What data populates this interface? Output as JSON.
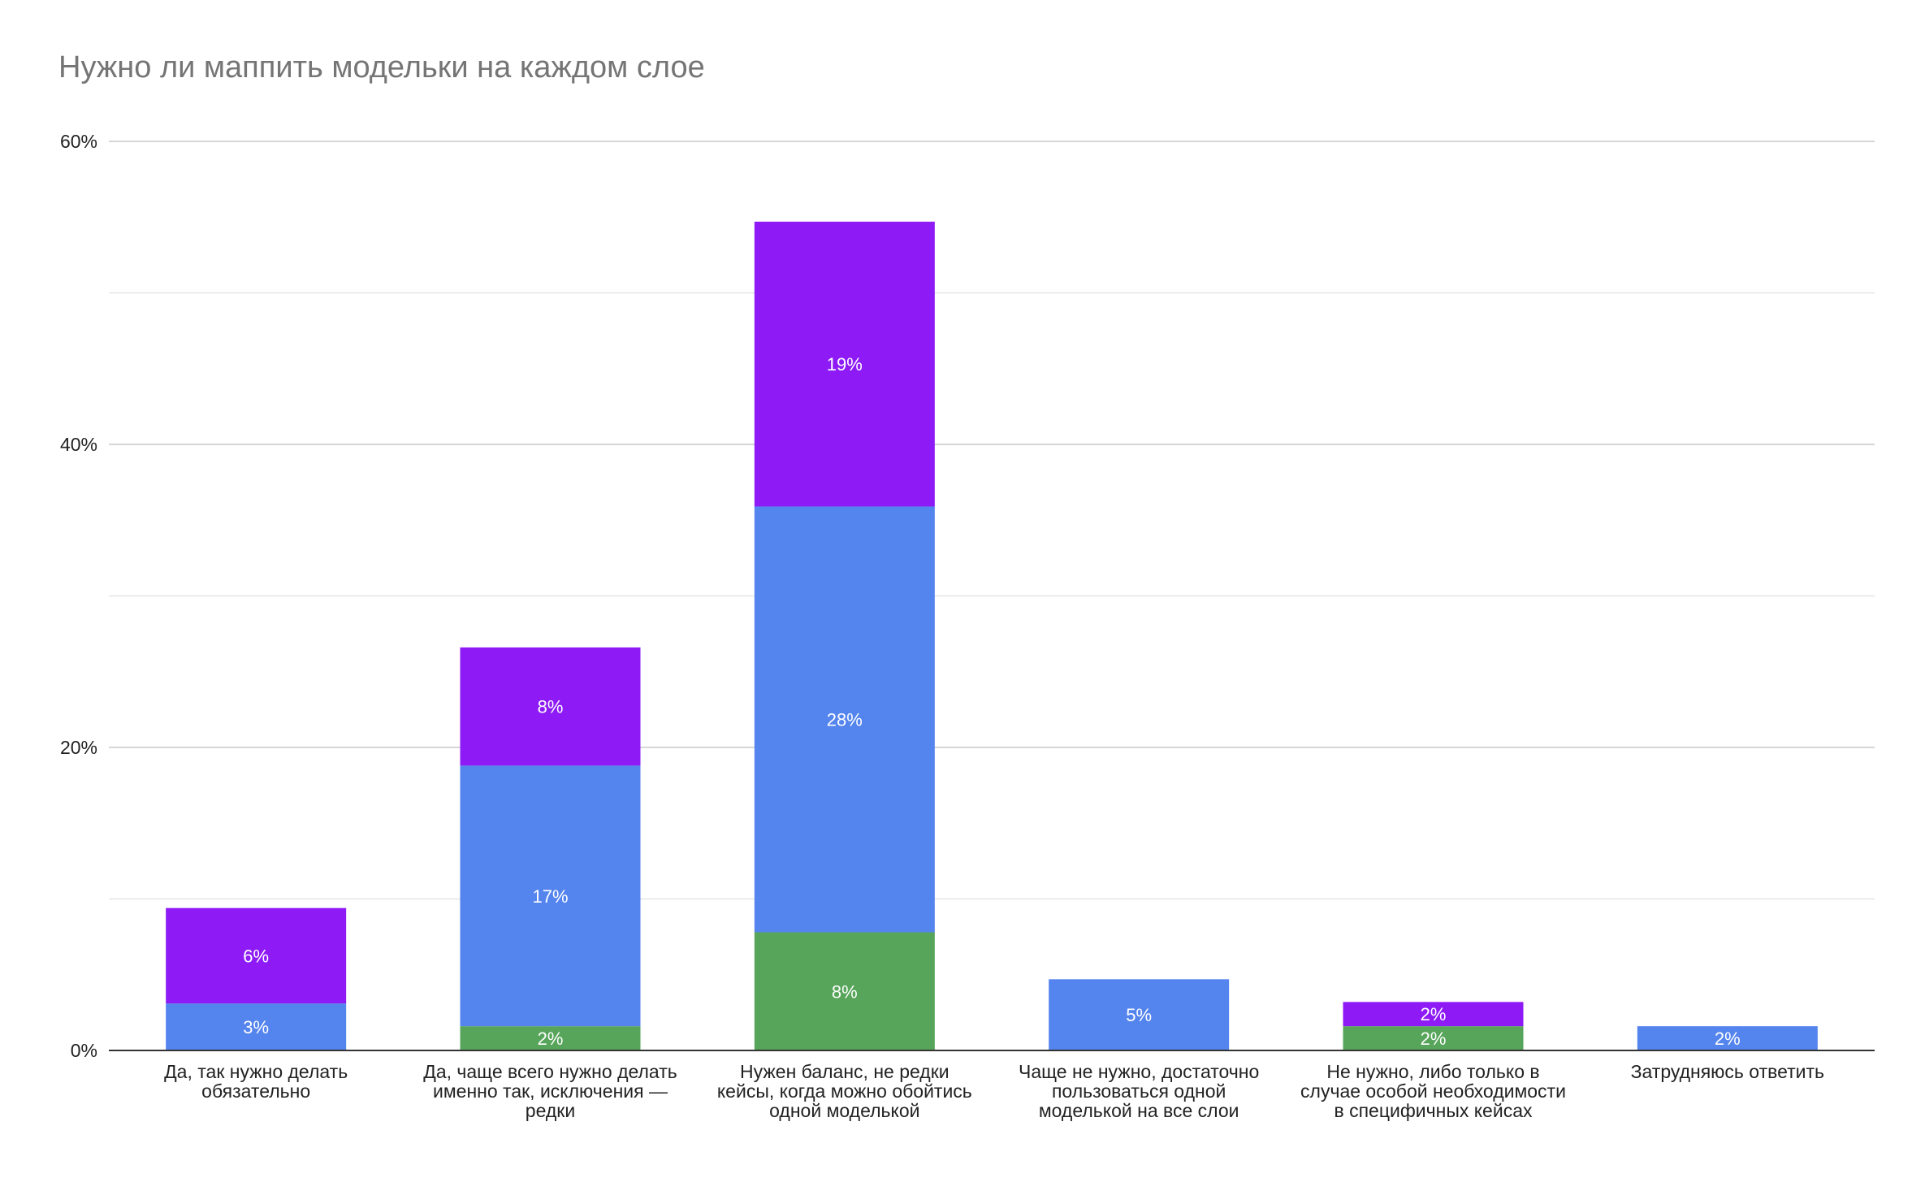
{
  "chart_data": {
    "type": "bar",
    "stacked": true,
    "title": "Нужно ли маппить модельки на каждом слое",
    "categories": [
      "Да, так нужно делать обязательно",
      "Да, чаще всего нужно делать именно так, исключения — редки",
      "Нужен баланс, не редки кейсы, когда можно обойтись одной моделькой",
      "Чаще не нужно, достаточно пользоваться одной моделькой на все слои",
      "Не нужно, либо только в случае особой необходимости в специфичных кейсах",
      "Затрудняюсь ответить"
    ],
    "series": [
      {
        "color": "#57a55a",
        "values": [
          0,
          1.6,
          7.8,
          0,
          1.6,
          0
        ],
        "labels": [
          "",
          "2%",
          "8%",
          "",
          "2%",
          ""
        ]
      },
      {
        "color": "#5484ed",
        "values": [
          3.1,
          17.2,
          28.1,
          4.7,
          0,
          1.6
        ],
        "labels": [
          "3%",
          "17%",
          "28%",
          "5%",
          "",
          "2%"
        ]
      },
      {
        "color": "#8e1bf5",
        "values": [
          6.3,
          7.8,
          18.8,
          0,
          1.6,
          0
        ],
        "labels": [
          "6%",
          "8%",
          "19%",
          "",
          "2%",
          ""
        ]
      }
    ],
    "ylim": [
      0,
      60
    ],
    "yticks": [
      {
        "value": 0,
        "label": "0%"
      },
      {
        "value": 20,
        "label": "20%"
      },
      {
        "value": 40,
        "label": "40%"
      },
      {
        "value": 60,
        "label": "60%"
      }
    ],
    "minor_gridlines": [
      10,
      30,
      50
    ],
    "grid": true,
    "legend": "none"
  }
}
